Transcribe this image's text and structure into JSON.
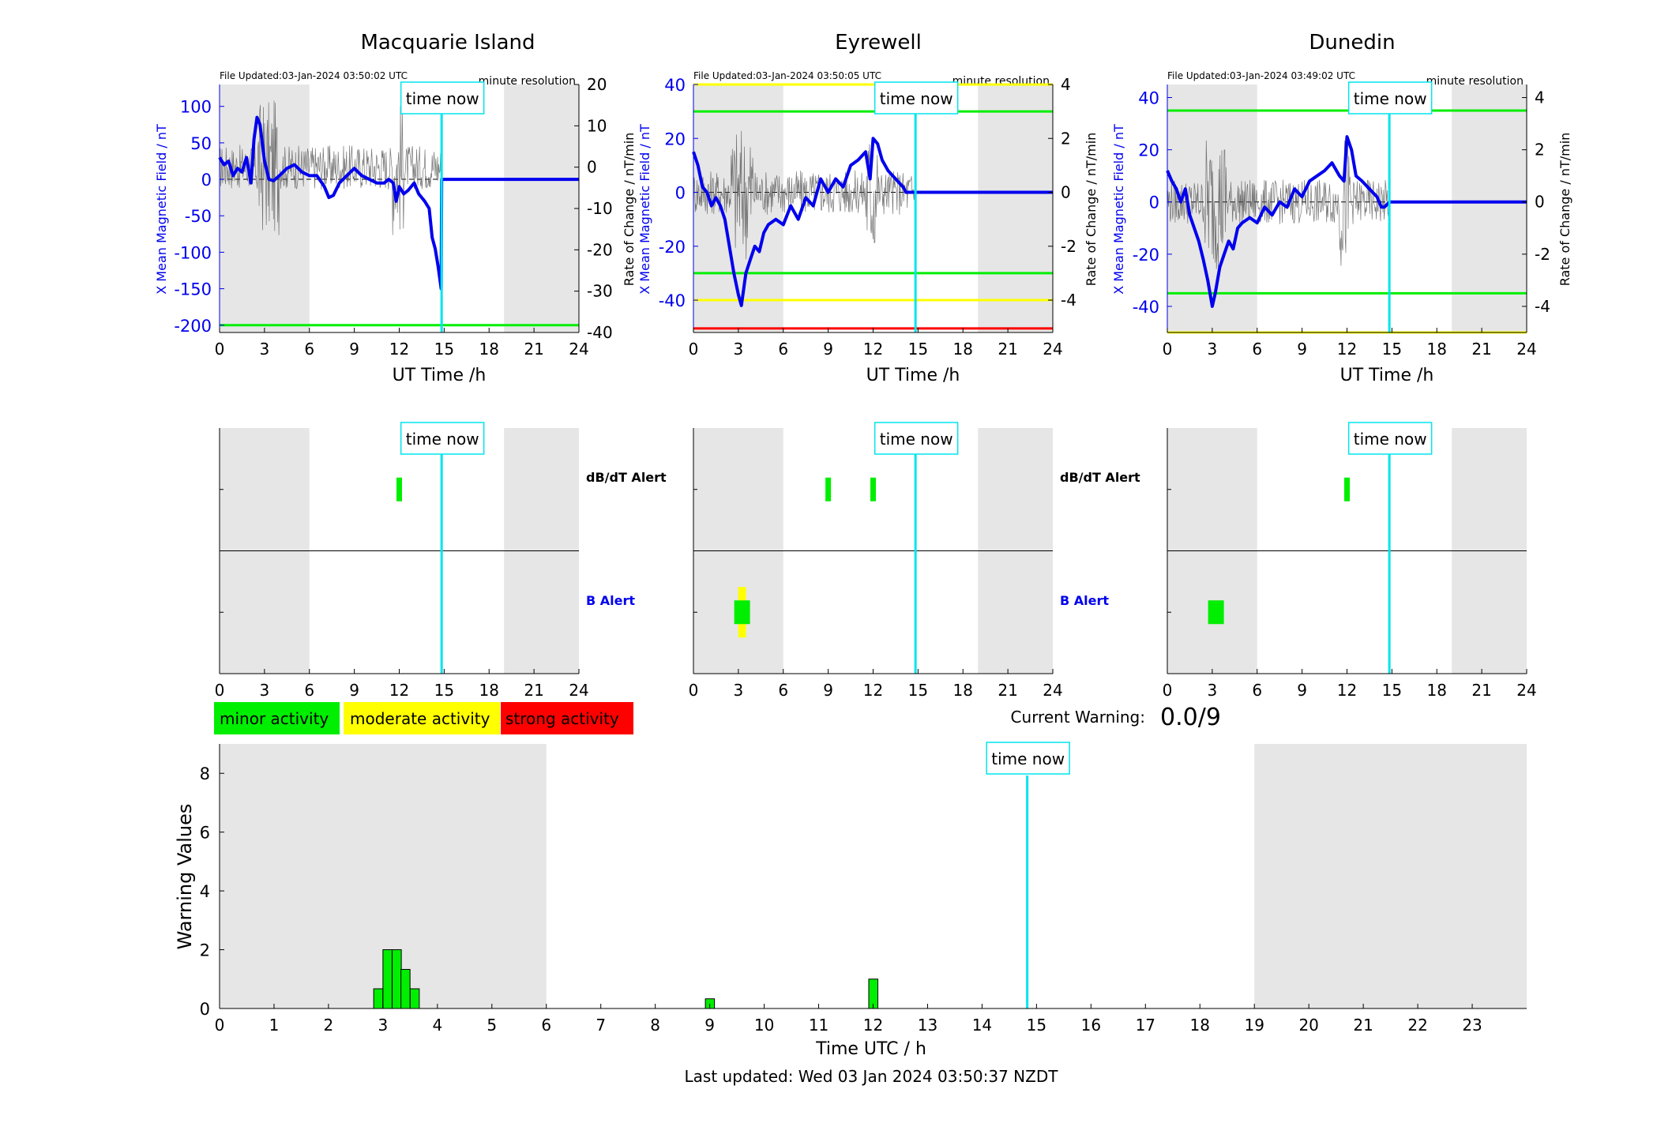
{
  "time_now_label": "time now",
  "time_now_hour": 14.83,
  "legend": {
    "minor": "minor activity",
    "moderate": "moderate activity",
    "strong": "strong activity"
  },
  "current_warning": {
    "label": "Current Warning:",
    "value": "0.0/9"
  },
  "last_updated": "Last updated: Wed 03 Jan 2024 03:50:37 NZDT",
  "colors": {
    "field": "#0000ee",
    "rate": "#555555",
    "green": "#00ee00",
    "yellow": "#ffff00",
    "red": "#ff0000",
    "shade": "#e6e6e6",
    "timenow": "#00e5ee",
    "alert_b_label": "#0000ee"
  },
  "chart_data": [
    {
      "type": "line",
      "title": "Macquarie Island",
      "file_updated": "File Updated:03-Jan-2024 03:50:02 UTC",
      "resolution": "minute resolution",
      "xlabel": "UT Time /h",
      "ylabel": "X Mean Magnetic Field / nT",
      "ylabel_right": "Rate of Change / nT/min",
      "xlim": [
        0,
        24
      ],
      "ylim": [
        -210,
        130
      ],
      "ylim_right": [
        -40,
        20
      ],
      "xticks": [
        0,
        3,
        6,
        9,
        12,
        15,
        18,
        21,
        24
      ],
      "yticks": [
        -200,
        -150,
        -100,
        -50,
        0,
        50,
        100
      ],
      "yticks_right": [
        -40,
        -30,
        -20,
        -10,
        0,
        10,
        20
      ],
      "shaded_hours": [
        [
          0,
          6
        ],
        [
          19,
          24
        ]
      ],
      "threshold_lines": [
        {
          "y": -200,
          "color": "green"
        }
      ],
      "series": [
        {
          "axis": "left",
          "x": [
            0,
            0.3,
            0.6,
            0.9,
            1.2,
            1.5,
            1.8,
            2.1,
            2.3,
            2.5,
            2.7,
            3.0,
            3.3,
            3.6,
            4.0,
            4.5,
            5.0,
            5.5,
            6.0,
            6.5,
            7.0,
            7.3,
            7.6,
            8.0,
            8.5,
            9.0,
            9.5,
            10.0,
            10.5,
            11.0,
            11.3,
            11.6,
            11.8,
            12.0,
            12.3,
            12.6,
            13.0,
            13.3,
            13.7,
            14.0,
            14.2,
            14.4,
            14.6,
            14.8,
            14.83,
            15,
            18,
            21,
            24
          ],
          "y": [
            30,
            20,
            25,
            5,
            15,
            10,
            30,
            -5,
            55,
            85,
            75,
            25,
            0,
            -2,
            5,
            15,
            20,
            10,
            5,
            5,
            -10,
            -25,
            -22,
            -5,
            5,
            15,
            5,
            0,
            -5,
            -5,
            0,
            -5,
            -30,
            -10,
            -20,
            -15,
            -5,
            -20,
            -30,
            -40,
            -80,
            -95,
            -120,
            -150,
            0,
            0,
            0,
            0,
            0
          ]
        },
        {
          "axis": "right",
          "name": "",
          "x": [
            0,
            24
          ],
          "y": [
            0,
            0
          ]
        }
      ]
    },
    {
      "type": "line",
      "title": "Eyrewell",
      "file_updated": "File Updated:03-Jan-2024 03:50:05 UTC",
      "resolution": "minute resolution",
      "xlabel": "UT Time /h",
      "ylabel": "X Mean Magnetic Field / nT",
      "ylabel_right": "Rate of Change / nT/min",
      "xlim": [
        0,
        24
      ],
      "ylim": [
        -52,
        40
      ],
      "ylim_right": [
        -5.2,
        4
      ],
      "xticks": [
        0,
        3,
        6,
        9,
        12,
        15,
        18,
        21,
        24
      ],
      "yticks": [
        -40,
        -20,
        0,
        20,
        40
      ],
      "yticks_right": [
        -4,
        -2,
        0,
        2,
        4
      ],
      "shaded_hours": [
        [
          0,
          6
        ],
        [
          19,
          24
        ]
      ],
      "threshold_lines": [
        {
          "y": 40,
          "color": "yellow"
        },
        {
          "y": 30,
          "color": "green"
        },
        {
          "y": -30,
          "color": "green"
        },
        {
          "y": -40,
          "color": "yellow"
        },
        {
          "y": -50.5,
          "color": "red"
        }
      ],
      "series": [
        {
          "axis": "left",
          "x": [
            0,
            0.3,
            0.6,
            0.9,
            1.2,
            1.5,
            1.8,
            2.1,
            2.4,
            2.7,
            3.0,
            3.2,
            3.5,
            3.8,
            4.1,
            4.4,
            4.7,
            5.0,
            5.5,
            6.0,
            6.5,
            7.0,
            7.5,
            8.0,
            8.5,
            9.0,
            9.5,
            10.0,
            10.5,
            11.0,
            11.5,
            11.8,
            12.0,
            12.3,
            12.6,
            13.0,
            13.5,
            14.0,
            14.2,
            14.83,
            15,
            18,
            21,
            24
          ],
          "y": [
            15,
            10,
            2,
            0,
            -5,
            -2,
            -5,
            -10,
            -20,
            -30,
            -38,
            -42,
            -30,
            -25,
            -20,
            -22,
            -15,
            -12,
            -10,
            -12,
            -5,
            -10,
            -2,
            -5,
            5,
            0,
            5,
            2,
            10,
            12,
            15,
            5,
            20,
            18,
            12,
            8,
            5,
            2,
            0,
            0,
            0,
            0,
            0,
            0
          ]
        },
        {
          "axis": "right",
          "name": "",
          "x": [
            0,
            24
          ],
          "y": [
            0,
            0
          ]
        }
      ]
    },
    {
      "type": "line",
      "title": "Dunedin",
      "file_updated": "File Updated:03-Jan-2024 03:49:02 UTC",
      "resolution": "minute resolution",
      "xlabel": "UT Time /h",
      "ylabel": "X Mean Magnetic Field / nT",
      "ylabel_right": "Rate of Change / nT/min",
      "xlim": [
        0,
        24
      ],
      "ylim": [
        -50,
        45
      ],
      "ylim_right": [
        -5,
        4.5
      ],
      "xticks": [
        0,
        3,
        6,
        9,
        12,
        15,
        18,
        21,
        24
      ],
      "yticks": [
        -40,
        -20,
        0,
        20,
        40
      ],
      "yticks_right": [
        -4,
        -2,
        0,
        2,
        4
      ],
      "shaded_hours": [
        [
          0,
          6
        ],
        [
          19,
          24
        ]
      ],
      "threshold_lines": [
        {
          "y": 35,
          "color": "green"
        },
        {
          "y": -35,
          "color": "green"
        },
        {
          "y": -50,
          "color": "yellow"
        }
      ],
      "series": [
        {
          "axis": "left",
          "x": [
            0,
            0.3,
            0.6,
            0.9,
            1.2,
            1.5,
            1.8,
            2.1,
            2.4,
            2.7,
            3.0,
            3.2,
            3.5,
            3.8,
            4.1,
            4.4,
            4.7,
            5.0,
            5.5,
            6.0,
            6.5,
            7.0,
            7.5,
            8.0,
            8.5,
            9.0,
            9.5,
            10.0,
            10.5,
            11.0,
            11.5,
            11.8,
            12.0,
            12.3,
            12.6,
            13.0,
            13.5,
            14.0,
            14.3,
            14.5,
            14.83,
            15,
            18,
            21,
            24
          ],
          "y": [
            12,
            8,
            5,
            0,
            5,
            -5,
            -10,
            -15,
            -22,
            -30,
            -40,
            -35,
            -25,
            -20,
            -15,
            -18,
            -10,
            -8,
            -6,
            -8,
            -2,
            -5,
            0,
            -2,
            5,
            2,
            8,
            10,
            12,
            15,
            10,
            8,
            25,
            20,
            10,
            8,
            5,
            2,
            -2,
            -2,
            0,
            0,
            0,
            0,
            0
          ]
        },
        {
          "axis": "right",
          "name": "",
          "x": [
            0,
            24
          ],
          "y": [
            0,
            0
          ]
        }
      ]
    },
    {
      "type": "bar",
      "title": "",
      "row_labels": [
        "dB/dT Alert",
        "B Alert"
      ],
      "xlim": [
        0,
        24
      ],
      "xticks": [
        0,
        3,
        6,
        9,
        12,
        15,
        18,
        21,
        24
      ],
      "shaded_hours": [
        [
          0,
          6
        ],
        [
          19,
          24
        ]
      ],
      "alerts": [
        {
          "row": "dBdt",
          "x": 12,
          "level": "green"
        }
      ]
    },
    {
      "type": "bar",
      "title": "",
      "row_labels": [
        "dB/dT Alert",
        "B Alert"
      ],
      "xlim": [
        0,
        24
      ],
      "xticks": [
        0,
        3,
        6,
        9,
        12,
        15,
        18,
        21,
        24
      ],
      "shaded_hours": [
        [
          0,
          6
        ],
        [
          19,
          24
        ]
      ],
      "alerts": [
        {
          "row": "dBdt",
          "x": 9,
          "level": "green"
        },
        {
          "row": "dBdt",
          "x": 12,
          "level": "green"
        },
        {
          "row": "B",
          "x": 3.25,
          "level": "yellow"
        },
        {
          "row": "B",
          "x": 3.25,
          "level": "green"
        }
      ]
    },
    {
      "type": "bar",
      "title": "",
      "row_labels": [
        "dB/dT Alert",
        "B Alert"
      ],
      "xlim": [
        0,
        24
      ],
      "xticks": [
        0,
        3,
        6,
        9,
        12,
        15,
        18,
        21,
        24
      ],
      "shaded_hours": [
        [
          0,
          6
        ],
        [
          19,
          24
        ]
      ],
      "alerts": [
        {
          "row": "dBdt",
          "x": 12,
          "level": "green"
        },
        {
          "row": "B",
          "x": 3.25,
          "level": "green"
        }
      ]
    },
    {
      "type": "bar",
      "title": "",
      "xlabel": "Time UTC / h",
      "ylabel": "Warning Values",
      "xlim": [
        0,
        24
      ],
      "ylim": [
        0,
        9
      ],
      "xticks": [
        0,
        1,
        2,
        3,
        4,
        5,
        6,
        7,
        8,
        9,
        10,
        11,
        12,
        13,
        14,
        15,
        16,
        17,
        18,
        19,
        20,
        21,
        22,
        23
      ],
      "yticks": [
        0,
        2,
        4,
        6,
        8
      ],
      "shaded_hours": [
        [
          0,
          6
        ],
        [
          19,
          24
        ]
      ],
      "bars": [
        {
          "x": 2.83,
          "value": 0.67
        },
        {
          "x": 3.0,
          "value": 2
        },
        {
          "x": 3.17,
          "value": 2
        },
        {
          "x": 3.33,
          "value": 1.33
        },
        {
          "x": 3.5,
          "value": 0.67
        },
        {
          "x": 8.92,
          "value": 0.33
        },
        {
          "x": 11.92,
          "value": 1
        }
      ],
      "bar_width": 0.167
    }
  ]
}
